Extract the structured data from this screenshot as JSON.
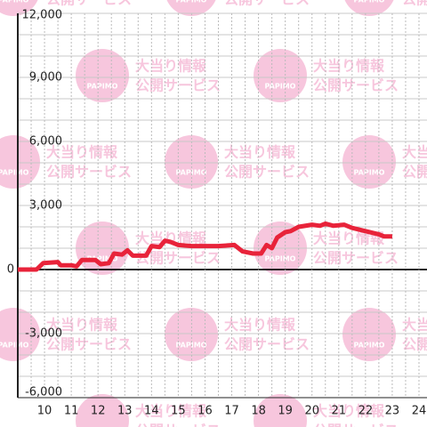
{
  "chart_data": {
    "type": "line",
    "x": [
      9.0,
      9.7,
      9.95,
      10.5,
      10.6,
      11.0,
      11.2,
      11.4,
      11.9,
      12.1,
      12.4,
      12.6,
      12.9,
      13.1,
      13.3,
      13.8,
      14.0,
      14.3,
      14.5,
      14.7,
      15.0,
      15.5,
      16.5,
      17.1,
      17.4,
      17.8,
      18.1,
      18.3,
      18.5,
      18.7,
      19.0,
      19.2,
      19.5,
      20.0,
      20.3,
      20.5,
      20.8,
      21.2,
      21.5,
      22.0,
      22.5,
      22.7,
      23.0
    ],
    "series": [
      {
        "color": "#e8233a",
        "values": [
          0,
          0,
          300,
          350,
          200,
          200,
          150,
          450,
          450,
          250,
          300,
          750,
          700,
          900,
          650,
          650,
          1100,
          1050,
          1350,
          1300,
          1150,
          1100,
          1100,
          1150,
          850,
          750,
          750,
          1150,
          1000,
          1500,
          1750,
          1800,
          2000,
          2100,
          2050,
          2150,
          2050,
          2100,
          1950,
          1800,
          1650,
          1550,
          1550
        ]
      }
    ],
    "xlim": [
      9,
      24.3
    ],
    "ylim": [
      -6000,
      12000
    ],
    "xticks": [
      10,
      11,
      12,
      13,
      14,
      15,
      16,
      17,
      18,
      19,
      20,
      21,
      22,
      23,
      24
    ],
    "x_minor_ticks": [
      9.5,
      10.5,
      11.5,
      12.5,
      13.5,
      14.5,
      15.5,
      16.5,
      17.5,
      18.5,
      19.5,
      20.5,
      21.5,
      22.5,
      23.5
    ],
    "yticks": [
      {
        "value": -6000,
        "label": "-6,000"
      },
      {
        "value": -3000,
        "label": "-3,000"
      },
      0,
      {
        "value": 3000,
        "label": "3,000"
      },
      {
        "value": 6000,
        "label": "6,000"
      },
      {
        "value": 9000,
        "label": "9,000"
      },
      {
        "value": 12000,
        "label": "12,000"
      }
    ],
    "y_minor_ticks": [
      -5000,
      -4000,
      -2000,
      -1000,
      1000,
      2000,
      4000,
      5000,
      7000,
      8000,
      10000,
      11000
    ],
    "grid": true
  },
  "watermark": {
    "logo": "PAPIMO",
    "line1": "大当り情報",
    "line2": "公開サービス"
  }
}
